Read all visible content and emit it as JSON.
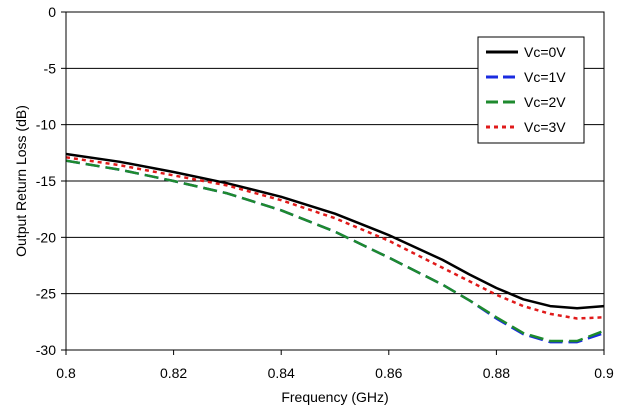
{
  "chart_data": {
    "type": "line",
    "xlabel": "Frequency (GHz)",
    "ylabel": "Output Return Loss (dB)",
    "xlim": [
      0.8,
      0.9
    ],
    "ylim": [
      -30,
      0
    ],
    "x_ticks": [
      "0.8",
      "0.82",
      "0.84",
      "0.86",
      "0.88",
      "0.9"
    ],
    "y_ticks": [
      "0",
      "-5",
      "-10",
      "-15",
      "-20",
      "-25",
      "-30"
    ],
    "grid": "horizontal",
    "legend_position": "top-right",
    "series": [
      {
        "name": "Vc=0V",
        "color": "#000000",
        "dash": "solid",
        "points": [
          [
            0.8,
            -12.6
          ],
          [
            0.81,
            -13.3
          ],
          [
            0.82,
            -14.2
          ],
          [
            0.83,
            -15.2
          ],
          [
            0.84,
            -16.4
          ],
          [
            0.85,
            -17.9
          ],
          [
            0.86,
            -19.8
          ],
          [
            0.87,
            -22.0
          ],
          [
            0.875,
            -23.3
          ],
          [
            0.88,
            -24.5
          ],
          [
            0.885,
            -25.5
          ],
          [
            0.89,
            -26.1
          ],
          [
            0.895,
            -26.3
          ],
          [
            0.9,
            -26.1
          ]
        ]
      },
      {
        "name": "Vc=1V",
        "color": "#1a2be0",
        "dash": "long-dash",
        "points": [
          [
            0.8,
            -13.2
          ],
          [
            0.81,
            -14.0
          ],
          [
            0.82,
            -15.0
          ],
          [
            0.83,
            -16.1
          ],
          [
            0.84,
            -17.6
          ],
          [
            0.85,
            -19.5
          ],
          [
            0.86,
            -21.8
          ],
          [
            0.87,
            -24.2
          ],
          [
            0.875,
            -25.6
          ],
          [
            0.88,
            -27.2
          ],
          [
            0.885,
            -28.6
          ],
          [
            0.89,
            -29.3
          ],
          [
            0.895,
            -29.3
          ],
          [
            0.9,
            -28.5
          ]
        ]
      },
      {
        "name": "Vc=2V",
        "color": "#1e8a2e",
        "dash": "long-dash",
        "points": [
          [
            0.8,
            -13.2
          ],
          [
            0.81,
            -14.0
          ],
          [
            0.82,
            -15.0
          ],
          [
            0.83,
            -16.1
          ],
          [
            0.84,
            -17.6
          ],
          [
            0.85,
            -19.5
          ],
          [
            0.86,
            -21.8
          ],
          [
            0.87,
            -24.2
          ],
          [
            0.875,
            -25.6
          ],
          [
            0.88,
            -27.1
          ],
          [
            0.885,
            -28.5
          ],
          [
            0.89,
            -29.2
          ],
          [
            0.895,
            -29.2
          ],
          [
            0.9,
            -28.3
          ]
        ]
      },
      {
        "name": "Vc=3V",
        "color": "#e01a1a",
        "dash": "dotted",
        "points": [
          [
            0.8,
            -12.9
          ],
          [
            0.81,
            -13.6
          ],
          [
            0.82,
            -14.5
          ],
          [
            0.83,
            -15.4
          ],
          [
            0.84,
            -16.7
          ],
          [
            0.85,
            -18.3
          ],
          [
            0.86,
            -20.3
          ],
          [
            0.87,
            -22.7
          ],
          [
            0.875,
            -23.9
          ],
          [
            0.88,
            -25.1
          ],
          [
            0.885,
            -26.1
          ],
          [
            0.89,
            -26.8
          ],
          [
            0.895,
            -27.2
          ],
          [
            0.9,
            -27.1
          ]
        ]
      }
    ]
  }
}
